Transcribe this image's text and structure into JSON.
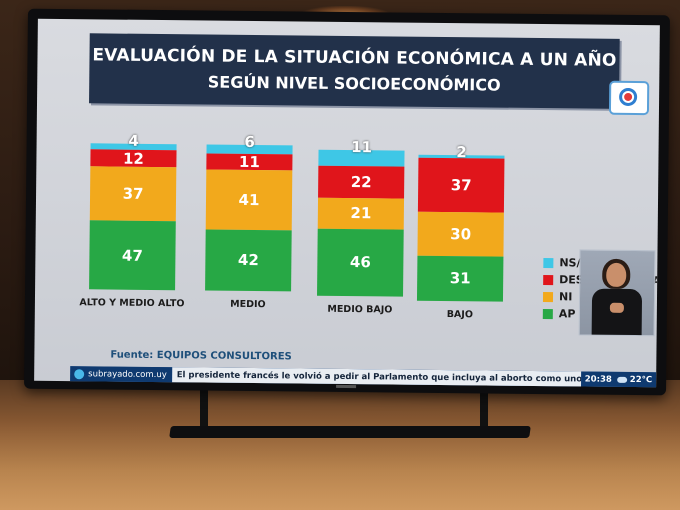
{
  "chart_data": {
    "type": "bar",
    "stacked": true,
    "title": "EVALUACIÓN DE LA SITUACIÓN ECONÓMICA A UN AÑO",
    "subtitle": "SEGÚN NIVEL SOCIOECONÓMICO",
    "categories": [
      "ALTO Y MEDIO ALTO",
      "MEDIO",
      "MEDIO BAJO",
      "BAJO"
    ],
    "series": [
      {
        "name": "NS/NC",
        "color": "#3ec7e6",
        "values": [
          4,
          6,
          11,
          2
        ]
      },
      {
        "name": "DESAPRUEBA",
        "color": "#e0151b",
        "values": [
          12,
          11,
          22,
          37
        ]
      },
      {
        "name": "NI",
        "color": "#f2a91c",
        "values": [
          37,
          41,
          21,
          30
        ]
      },
      {
        "name": "APRUEBA",
        "color": "#27a845",
        "values": [
          47,
          42,
          46,
          31
        ]
      }
    ],
    "legend_visible_text": [
      "NS/N",
      "DESA",
      "EBA",
      "NI",
      "AP"
    ],
    "legend_position": "right",
    "source": "Fuente: EQUIPOS CONSULTORES"
  },
  "ticker": {
    "site": "subrayado.com.uy",
    "headline": "El presidente francés le volvió a pedir al Parlamento que incluya al aborto como uno de los derechos fundamentales",
    "time": "20:38",
    "temperature": "22°C"
  },
  "channel_logo": "channel-eye-logo-icon"
}
